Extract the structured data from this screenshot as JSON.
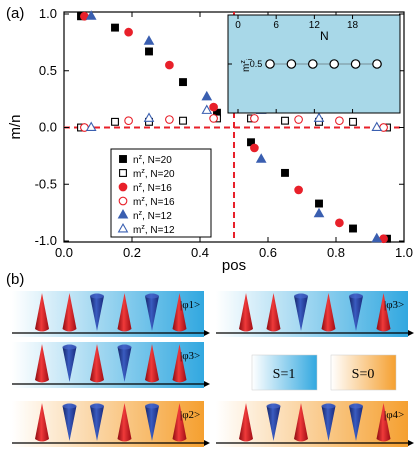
{
  "panel_a_label": "(a)",
  "panel_b_label": "(b)",
  "chart_data": {
    "type": "scatter",
    "xlabel": "pos",
    "ylabel": "m/n",
    "xlim": [
      0.0,
      1.0
    ],
    "ylim": [
      -1.0,
      1.0
    ],
    "xticks": [
      "0.0",
      "0.2",
      "0.4",
      "0.6",
      "0.8",
      "1.0"
    ],
    "yticks": [
      "1.0",
      "0.5",
      "0.0",
      "-0.5",
      "-1.0"
    ],
    "legend_position": "bottom-left",
    "series": [
      {
        "name": "n^z, N=20",
        "marker": "square",
        "filled": true,
        "color": "#000000",
        "x": [
          0.05,
          0.15,
          0.25,
          0.35,
          0.45,
          0.55,
          0.65,
          0.75,
          0.85,
          0.95
        ],
        "y": [
          0.98,
          0.88,
          0.67,
          0.4,
          0.13,
          -0.13,
          -0.4,
          -0.67,
          -0.89,
          -0.98
        ]
      },
      {
        "name": "m^z, N=20",
        "marker": "square",
        "filled": false,
        "color": "#000000",
        "x": [
          0.05,
          0.15,
          0.25,
          0.35,
          0.45,
          0.55,
          0.65,
          0.75,
          0.85,
          0.95
        ],
        "y": [
          0.0,
          0.05,
          0.05,
          0.06,
          0.08,
          0.08,
          0.06,
          0.05,
          0.05,
          0.0
        ]
      },
      {
        "name": "n^z, N=16",
        "marker": "circle",
        "filled": true,
        "color": "#e8202a",
        "x": [
          0.06,
          0.19,
          0.31,
          0.44,
          0.56,
          0.69,
          0.81,
          0.94
        ],
        "y": [
          0.98,
          0.84,
          0.55,
          0.18,
          -0.18,
          -0.55,
          -0.84,
          -0.98
        ]
      },
      {
        "name": "m^z, N=16",
        "marker": "circle",
        "filled": false,
        "color": "#e8202a",
        "x": [
          0.06,
          0.19,
          0.31,
          0.44,
          0.56,
          0.69,
          0.81,
          0.94
        ],
        "y": [
          0.0,
          0.06,
          0.07,
          0.08,
          0.08,
          0.07,
          0.06,
          0.0
        ]
      },
      {
        "name": "n^z, N=12",
        "marker": "triangle",
        "filled": true,
        "color": "#3a5fb0",
        "x": [
          0.08,
          0.25,
          0.42,
          0.58,
          0.75,
          0.92
        ],
        "y": [
          0.98,
          0.76,
          0.27,
          -0.28,
          -0.76,
          -0.98
        ]
      },
      {
        "name": "m^z, N=12",
        "marker": "triangle",
        "filled": false,
        "color": "#3a5fb0",
        "x": [
          0.08,
          0.25,
          0.42,
          0.58,
          0.75,
          0.92
        ],
        "y": [
          0.0,
          0.08,
          0.15,
          0.15,
          0.08,
          0.0
        ]
      }
    ],
    "reference_lines": {
      "x": 0.5,
      "y": 0.0,
      "color": "#e8202a",
      "style": "dashed"
    },
    "inset": {
      "xlabel": "N",
      "ylabel": "m^z_i",
      "xticks": [
        "0",
        "6",
        "12",
        "18"
      ],
      "xlim": [
        0,
        22
      ],
      "ytick": "0.5",
      "background": "#a8d8e8",
      "x": [
        2,
        6,
        10,
        14,
        18,
        22
      ],
      "y": [
        0.5,
        0.5,
        0.5,
        0.5,
        0.5,
        0.5
      ]
    }
  },
  "panel_b": {
    "boxes": [
      {
        "state_label": "|φ1>",
        "gradient": "blue",
        "cones": [
          "up",
          "up",
          "down",
          "up",
          "down",
          "up"
        ]
      },
      {
        "state_label": "|φ3>",
        "gradient": "blue",
        "cones": [
          "up",
          "up",
          "down",
          "up",
          "down",
          "up"
        ]
      },
      {
        "state_label": "|φ3>",
        "gradient": "blue",
        "cones": [
          "up",
          "down",
          "up",
          "down",
          "up",
          "up"
        ]
      },
      {
        "state_label": "|φ2>",
        "gradient": "orange",
        "cones": [
          "up",
          "down",
          "down",
          "up",
          "down",
          "up"
        ]
      },
      {
        "state_label": "|φ4>",
        "gradient": "orange",
        "cones": [
          "up",
          "down",
          "up",
          "down",
          "down",
          "up"
        ]
      }
    ],
    "legend": [
      {
        "label": "S=1",
        "gradient": "blue"
      },
      {
        "label": "S=0",
        "gradient": "orange"
      }
    ]
  },
  "colors": {
    "red_cone": "#d8141c",
    "blue_cone": "#2a3f9a",
    "blue_grad_start": "#ffffff",
    "blue_grad_end": "#32a8e0",
    "orange_grad_start": "#ffffff",
    "orange_grad_end": "#f5a030"
  }
}
